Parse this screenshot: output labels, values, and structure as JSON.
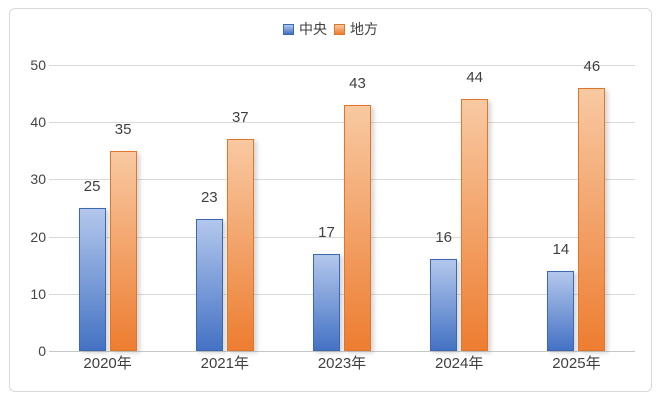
{
  "chart_data": {
    "type": "bar",
    "title": "",
    "categories": [
      "2020年",
      "2021年",
      "2023年",
      "2024年",
      "2025年"
    ],
    "series": [
      {
        "key": "central",
        "name": "中央",
        "values": [
          25,
          23,
          17,
          16,
          14
        ],
        "color_top": "#b3c7ec",
        "color_bottom": "#4472c4",
        "border_color": "#3c68b1"
      },
      {
        "key": "local",
        "name": "地方",
        "values": [
          35,
          37,
          43,
          44,
          46
        ],
        "color_top": "#f8c9a2",
        "color_bottom": "#ed7d31",
        "border_color": "#df772b"
      }
    ],
    "xlabel": "",
    "ylabel": "",
    "ylim": [
      0,
      50
    ],
    "yticks": [
      0,
      10,
      20,
      30,
      40,
      50
    ],
    "grid": true,
    "legend_position": "top",
    "value_labels": true
  },
  "colors": {
    "frame_border": "#d9d9d9",
    "gridline": "#d9d9d9",
    "axis_line": "#c6c6c6",
    "text": "#404040",
    "background": "#ffffff"
  }
}
